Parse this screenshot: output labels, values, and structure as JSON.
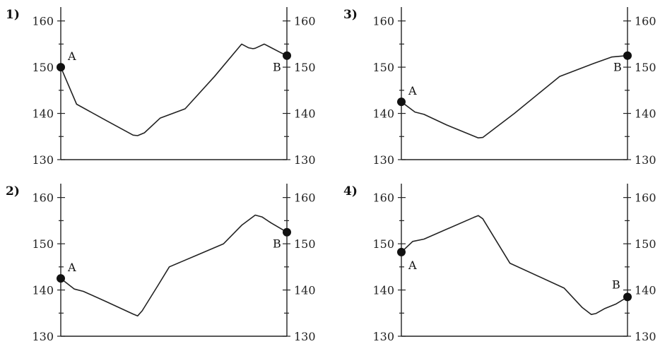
{
  "chart_data": [
    {
      "type": "line",
      "panel_label": "1)",
      "ylim": [
        130,
        163
      ],
      "ticks": [
        130,
        140,
        150,
        160
      ],
      "tick_labels": [
        "130",
        "140",
        "150",
        "160"
      ],
      "x": [
        0,
        0.07,
        0.2,
        0.32,
        0.34,
        0.37,
        0.44,
        0.55,
        0.68,
        0.8,
        0.83,
        0.85,
        0.86,
        0.9,
        0.97,
        1.0
      ],
      "y": [
        150,
        142,
        138.5,
        135.3,
        135.2,
        135.8,
        139,
        141,
        148,
        155,
        154.2,
        154,
        154.1,
        155,
        153.2,
        152.5
      ],
      "point_a": {
        "label": "A",
        "x": 0,
        "y": 150
      },
      "point_b": {
        "label": "B",
        "x": 1.0,
        "y": 152.5
      },
      "label_positions": {
        "a": "right",
        "b": "left"
      }
    },
    {
      "type": "line",
      "panel_label": "2)",
      "ylim": [
        130,
        163
      ],
      "ticks": [
        130,
        140,
        150,
        160
      ],
      "tick_labels": [
        "130",
        "140",
        "150",
        "160"
      ],
      "x": [
        0,
        0.06,
        0.1,
        0.2,
        0.32,
        0.34,
        0.36,
        0.43,
        0.48,
        0.6,
        0.72,
        0.8,
        0.86,
        0.89,
        0.93,
        1.0
      ],
      "y": [
        142.5,
        140.2,
        139.7,
        137.5,
        134.8,
        134.4,
        135.5,
        141,
        145,
        147.5,
        150,
        154,
        156.2,
        155.8,
        154.5,
        152.5
      ],
      "point_a": {
        "label": "A",
        "x": 0,
        "y": 142.5
      },
      "point_b": {
        "label": "B",
        "x": 1.0,
        "y": 152.5
      },
      "label_positions": {
        "a": "right",
        "b": "left"
      }
    },
    {
      "type": "line",
      "panel_label": "3)",
      "ylim": [
        130,
        163
      ],
      "ticks": [
        130,
        140,
        150,
        160
      ],
      "tick_labels": [
        "130",
        "140",
        "150",
        "160"
      ],
      "x": [
        0,
        0.06,
        0.1,
        0.2,
        0.34,
        0.36,
        0.5,
        0.7,
        0.85,
        0.93,
        1.0
      ],
      "y": [
        142.5,
        140.3,
        139.8,
        137.5,
        134.7,
        134.8,
        140,
        148,
        150.8,
        152.2,
        152.5
      ],
      "point_a": {
        "label": "A",
        "x": 0,
        "y": 142.5
      },
      "point_b": {
        "label": "B",
        "x": 1.0,
        "y": 152.5
      },
      "label_positions": {
        "a": "right",
        "b": "left"
      }
    },
    {
      "type": "line",
      "panel_label": "4)",
      "ylim": [
        130,
        163
      ],
      "ticks": [
        130,
        140,
        150,
        160
      ],
      "tick_labels": [
        "130",
        "140",
        "150",
        "160"
      ],
      "x": [
        0,
        0.05,
        0.1,
        0.32,
        0.34,
        0.36,
        0.48,
        0.72,
        0.8,
        0.84,
        0.86,
        0.9,
        0.95,
        1.0
      ],
      "y": [
        148.2,
        150.5,
        151,
        155.7,
        156.1,
        155.4,
        145.8,
        140.4,
        136.2,
        134.7,
        134.9,
        136,
        137,
        138.5
      ],
      "point_a": {
        "label": "A",
        "x": 0,
        "y": 148.2
      },
      "point_b": {
        "label": "B",
        "x": 1.0,
        "y": 138.5
      },
      "label_positions": {
        "a": "below-right",
        "b": "above-left"
      }
    }
  ]
}
